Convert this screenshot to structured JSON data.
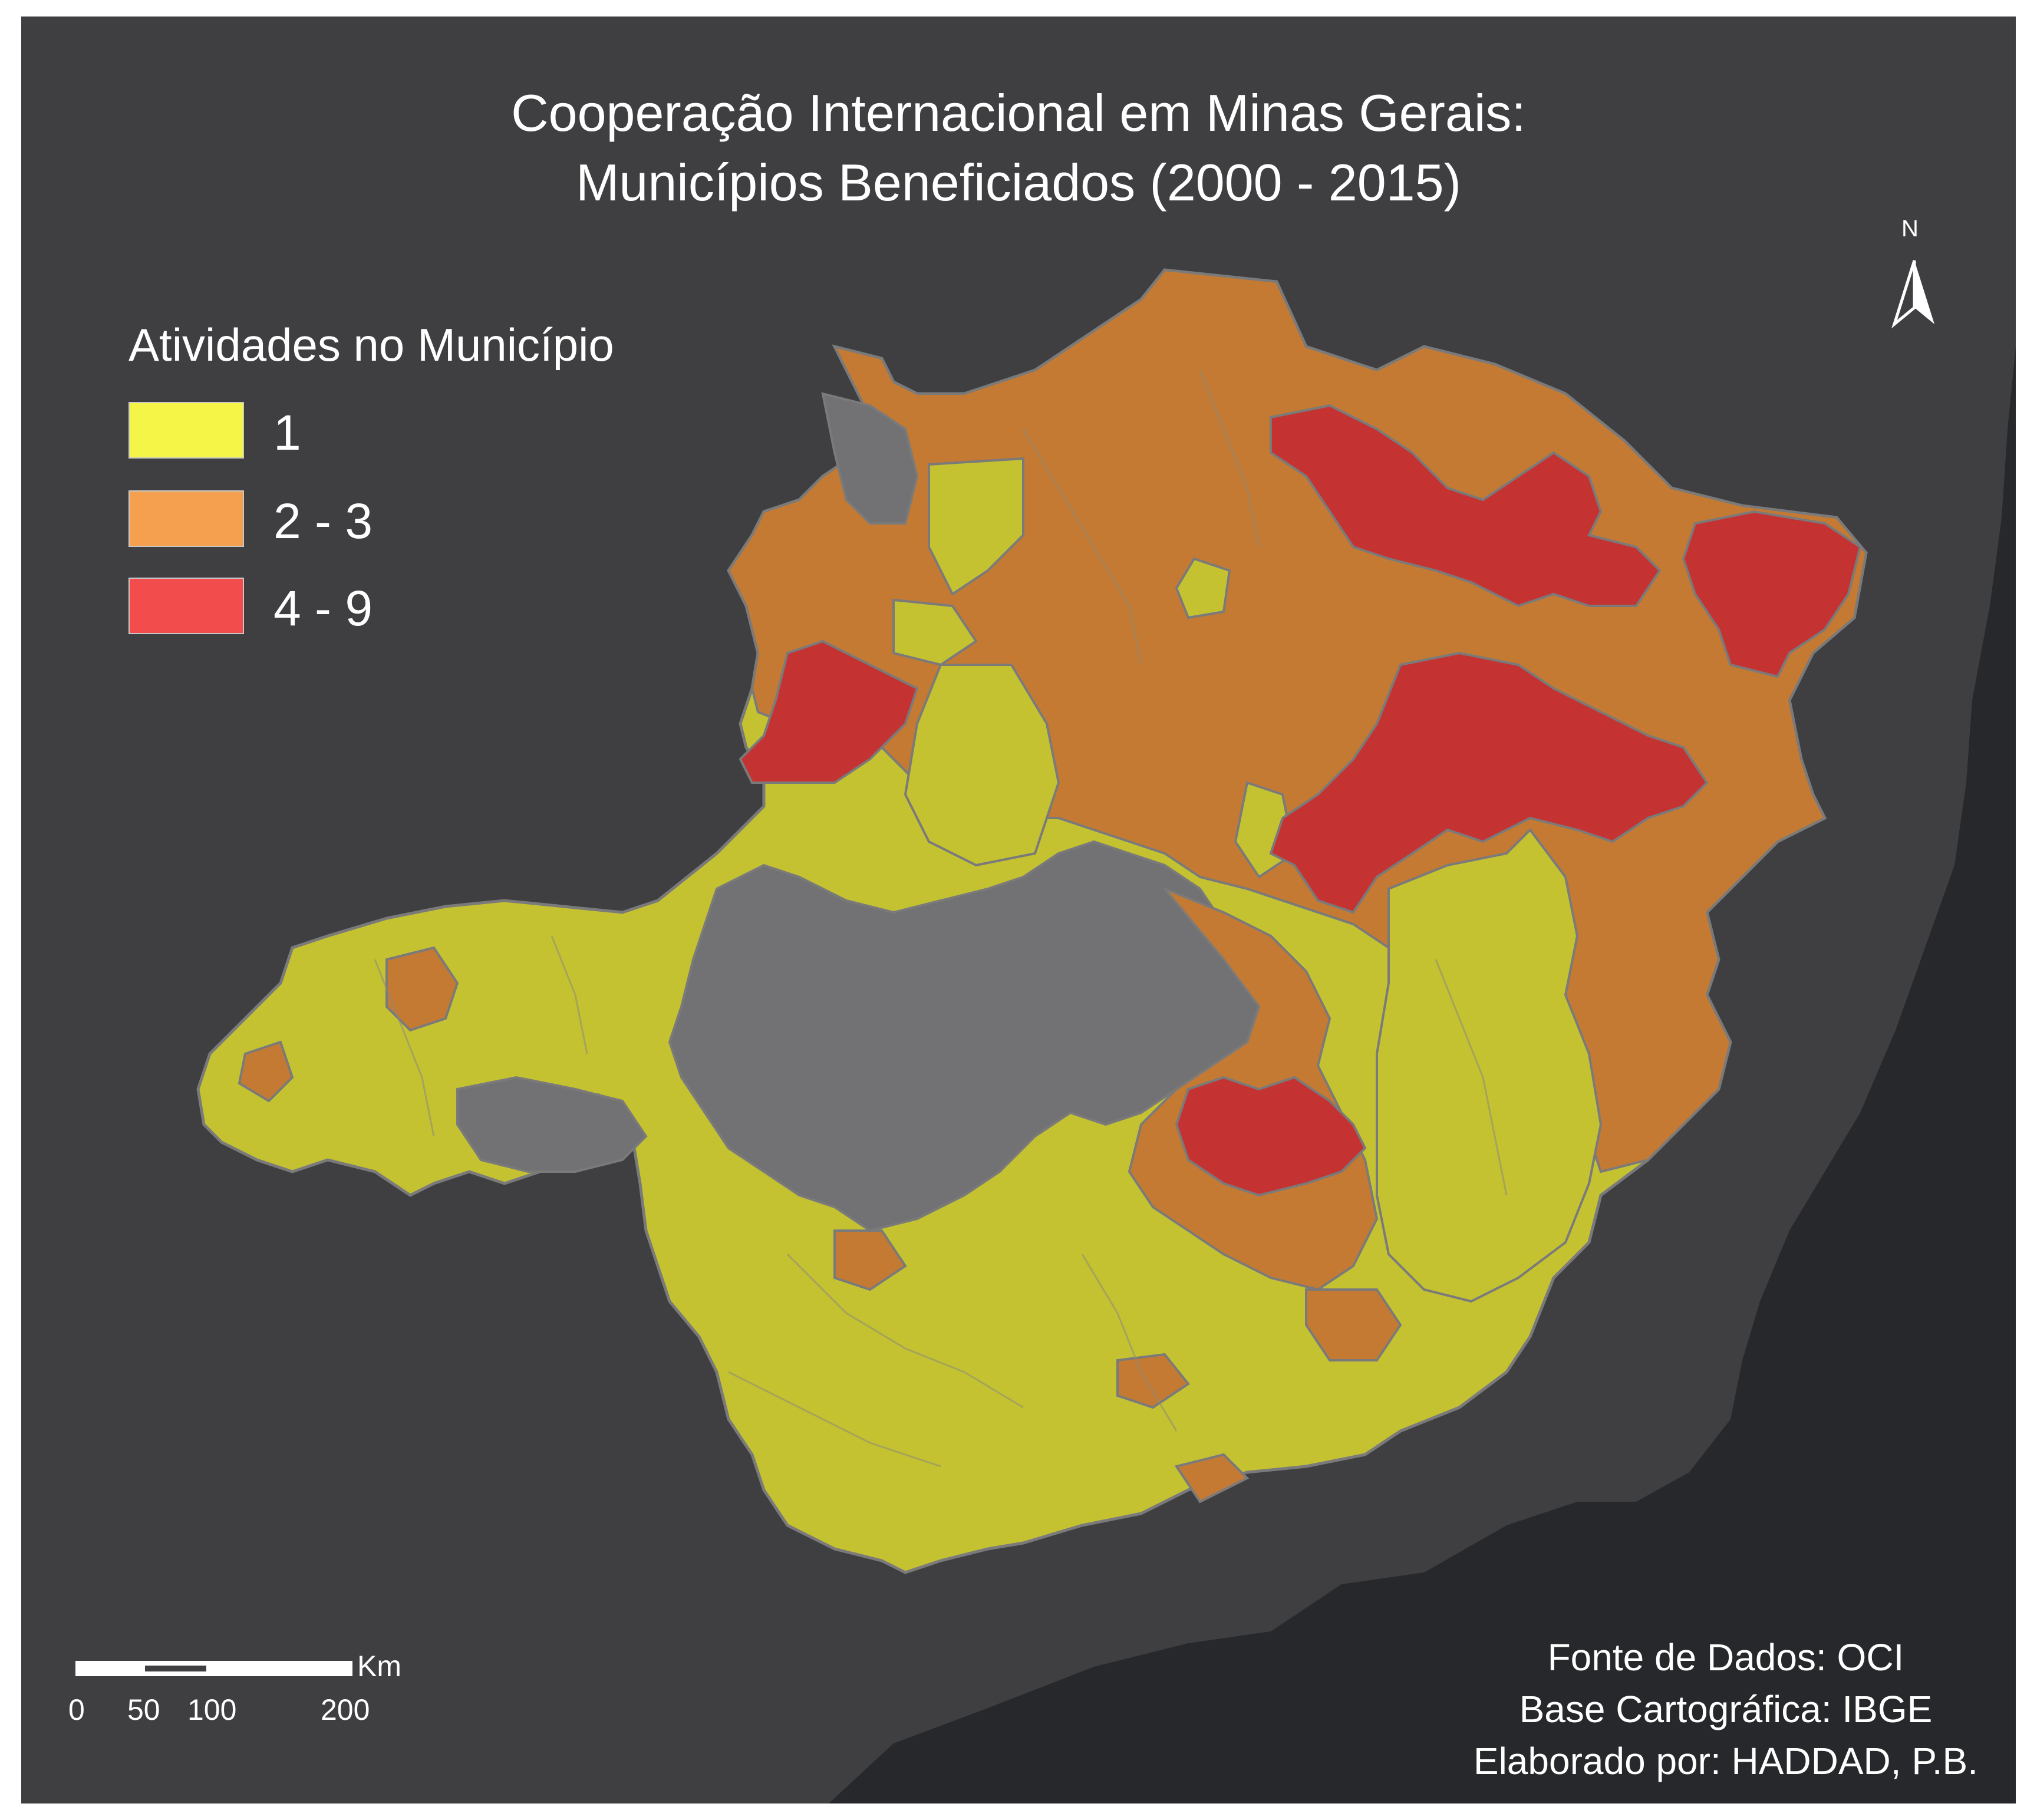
{
  "title": {
    "line1": "Cooperação Internacional em Minas Gerais:",
    "line2": "Municípios Beneficiados (2000 - 2015)"
  },
  "legend": {
    "title": "Atividades no Município",
    "items": [
      {
        "label": "1",
        "color": "#f5f547"
      },
      {
        "label": "2 - 3",
        "color": "#f4a04f"
      },
      {
        "label": "4 - 9",
        "color": "#f24c4c"
      }
    ]
  },
  "map_colors": {
    "class_1": "#c5c232",
    "class_2_3": "#c47a33",
    "class_4_9": "#c53232",
    "no_activity": "#727274",
    "ocean": "#27282b",
    "land_outside": "#3f3f42",
    "borders": "#7a7a7a"
  },
  "north_arrow": {
    "label": "N",
    "icon": "north-arrow-icon"
  },
  "scale_bar": {
    "unit": "Km",
    "ticks": [
      "0",
      "50",
      "100",
      "200"
    ]
  },
  "credits": {
    "source": "Fonte de Dados: OCI",
    "basemap": "Base Cartográfica: IBGE",
    "author": "Elaborado por: HADDAD, P.B."
  }
}
